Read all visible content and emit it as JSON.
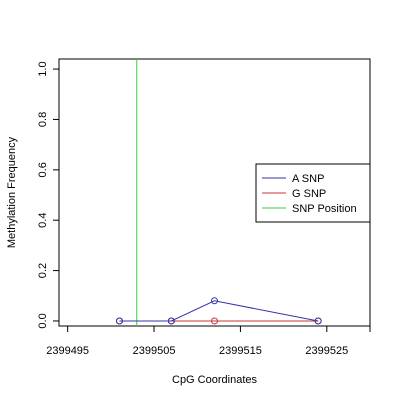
{
  "chart_data": {
    "type": "line",
    "xlabel": "CpG Coordinates",
    "ylabel": "Methylation Frequency",
    "xlim": [
      2399494,
      2399530
    ],
    "ylim": [
      -0.02,
      1.04
    ],
    "x_ticks": [
      2399495,
      2399505,
      2399515,
      2399525
    ],
    "y_ticks": [
      0.0,
      0.2,
      0.4,
      0.6,
      0.8,
      1.0
    ],
    "x_tick_labels": [
      "2399495",
      "2399505",
      "2399515",
      "2399525"
    ],
    "y_tick_labels": [
      "0.0",
      "0.2",
      "0.4",
      "0.6",
      "0.8",
      "1.0"
    ],
    "grid": false,
    "legend_position": "right",
    "series": [
      {
        "name": "A SNP",
        "color": "#3333aa",
        "x": [
          2399501,
          2399507,
          2399512,
          2399524
        ],
        "y": [
          0.0,
          0.0,
          0.08,
          0.0
        ]
      },
      {
        "name": "G SNP",
        "color": "#cc3333",
        "x": [
          2399501,
          2399507,
          2399512,
          2399524
        ],
        "y": [
          0.0,
          0.0,
          0.0,
          0.0
        ]
      }
    ],
    "snp_position": {
      "name": "SNP Position",
      "x": 2399503,
      "color": "#44cc44"
    }
  }
}
